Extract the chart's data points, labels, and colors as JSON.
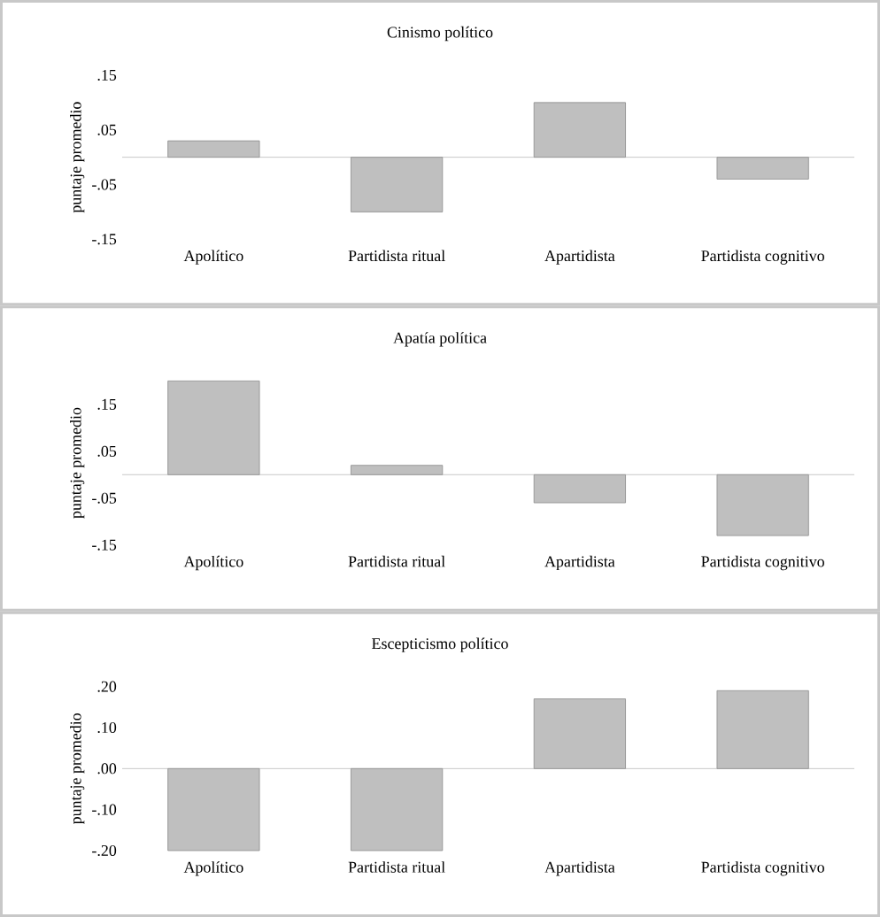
{
  "chart_data": [
    {
      "type": "bar",
      "title": "Cinismo político",
      "ylabel": "puntaje promedio",
      "categories": [
        "Apolítico",
        "Partidista ritual",
        "Apartidista",
        "Partidista cognitivo"
      ],
      "values": [
        0.03,
        -0.1,
        0.1,
        -0.04
      ],
      "color": "#bfbfbf",
      "ylim": [
        -0.15,
        0.15
      ],
      "yticks": [
        {
          "value": -0.15,
          "label": "-.15"
        },
        {
          "value": -0.05,
          "label": "-.05"
        },
        {
          "value": 0.05,
          "label": ".05"
        },
        {
          "value": 0.15,
          "label": ".15"
        }
      ]
    },
    {
      "type": "bar",
      "title": "Apatía política",
      "ylabel": "puntaje promedio",
      "categories": [
        "Apolítico",
        "Partidista ritual",
        "Apartidista",
        "Partidista cognitivo"
      ],
      "values": [
        0.2,
        0.02,
        -0.06,
        -0.13
      ],
      "color": "#bfbfbf",
      "ylim": [
        -0.15,
        0.2
      ],
      "yticks": [
        {
          "value": -0.15,
          "label": "-.15"
        },
        {
          "value": -0.05,
          "label": "-.05"
        },
        {
          "value": 0.05,
          "label": ".05"
        },
        {
          "value": 0.15,
          "label": ".15"
        }
      ]
    },
    {
      "type": "bar",
      "title": "Escepticismo político",
      "ylabel": "puntaje promedio",
      "categories": [
        "Apolítico",
        "Partidista ritual",
        "Apartidista",
        "Partidista cognitivo"
      ],
      "values": [
        -0.2,
        -0.2,
        0.17,
        0.19
      ],
      "color": "#bfbfbf",
      "ylim": [
        -0.2,
        0.2
      ],
      "yticks": [
        {
          "value": -0.2,
          "label": "-.20"
        },
        {
          "value": -0.1,
          "label": "-.10"
        },
        {
          "value": 0.0,
          "label": ".00"
        },
        {
          "value": 0.1,
          "label": ".10"
        },
        {
          "value": 0.2,
          "label": ".20"
        }
      ]
    }
  ]
}
